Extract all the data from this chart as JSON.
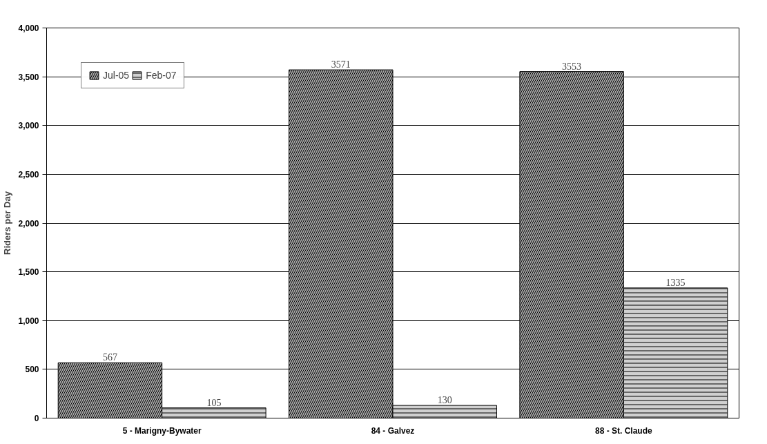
{
  "chart_data": {
    "type": "bar",
    "ylabel": "Riders per Day",
    "categories": [
      "5 - Marigny-Bywater",
      "84 - Galvez",
      "88 - St. Claude"
    ],
    "series": [
      {
        "name": "Jul-05",
        "color": "#a6a6a6",
        "values": [
          567,
          3571,
          3553
        ]
      },
      {
        "name": "Feb-07",
        "color": "#d0d0d0",
        "values": [
          105,
          130,
          1335
        ]
      }
    ],
    "ylim": [
      0,
      4000
    ],
    "yticks": [
      0,
      {
        "value": 500,
        "label": "500"
      },
      {
        "value": 1000,
        "label": "1,000"
      },
      {
        "value": 1500,
        "label": "1,500"
      },
      {
        "value": 2000,
        "label": "2,000"
      },
      {
        "value": 2500,
        "label": "2,500"
      },
      {
        "value": 3000,
        "label": "3,000"
      },
      {
        "value": 3500,
        "label": "3,500"
      },
      {
        "value": 4000,
        "label": "4,000"
      }
    ],
    "grid": "y",
    "legend": "top left",
    "data_labels": true
  }
}
